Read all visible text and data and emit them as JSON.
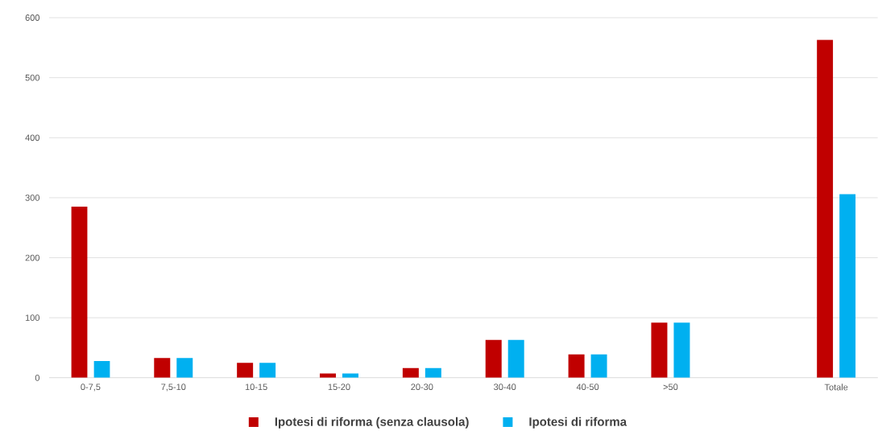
{
  "chart_data": {
    "type": "bar",
    "categories": [
      "0-7,5",
      "7,5-10",
      "10-15",
      "15-20",
      "20-30",
      "30-40",
      "40-50",
      ">50",
      null,
      "Totale"
    ],
    "series": [
      {
        "name": "Ipotesi di riforma (senza clausola)",
        "color": "#c00000",
        "values": [
          285,
          33,
          25,
          7,
          16,
          63,
          39,
          92,
          null,
          563
        ]
      },
      {
        "name": "Ipotesi di riforma",
        "color": "#00b0f0",
        "values": [
          28,
          33,
          25,
          7,
          16,
          63,
          39,
          92,
          null,
          306
        ]
      }
    ],
    "ylim": [
      0,
      600
    ],
    "yticks": [
      0,
      100,
      200,
      300,
      400,
      500,
      600
    ],
    "grid": "y",
    "legend": "bottom"
  }
}
